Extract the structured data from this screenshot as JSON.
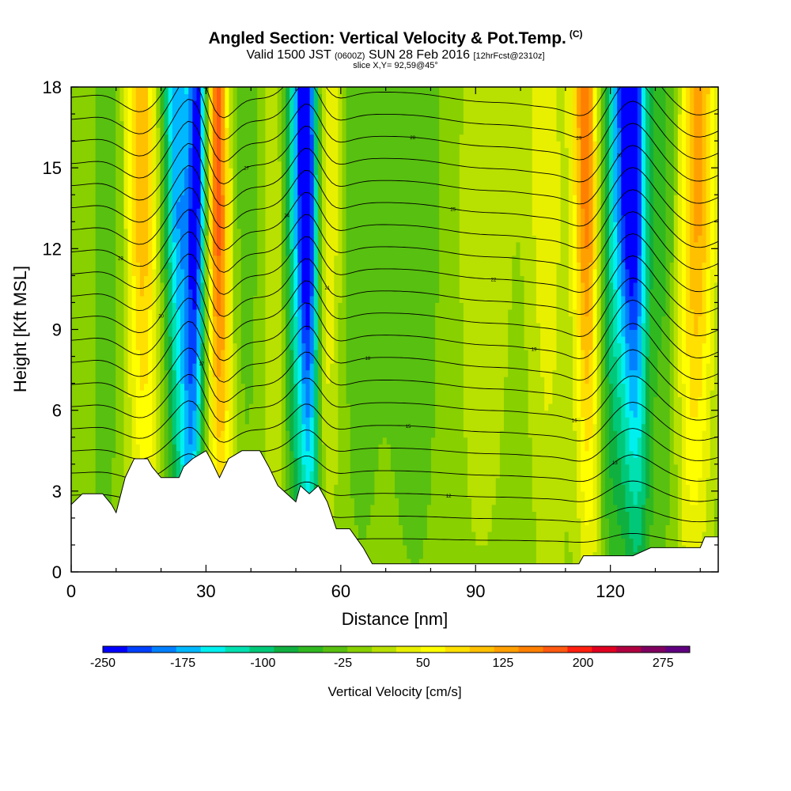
{
  "header": {
    "title": "Angled Section: Vertical Velocity & Pot.Temp.",
    "title_tag": "(C)",
    "valid_prefix": "Valid 1500 JST",
    "valid_zone": "(0600Z)",
    "valid_date": "SUN 28 Feb 2016",
    "valid_fcst": "[12hrFcst@2310z]",
    "slice": "slice X,Y= 92,59@45°"
  },
  "chart_data": {
    "type": "heatmap",
    "xlabel": "Distance [nm]",
    "ylabel": "Height [Kft MSL]",
    "xlim": [
      0,
      144
    ],
    "ylim": [
      0,
      18
    ],
    "x_ticks": [
      0,
      30,
      60,
      90,
      120
    ],
    "y_ticks": [
      0,
      3,
      6,
      9,
      12,
      15,
      18
    ],
    "grid": false,
    "bands": [
      {
        "x": 8,
        "w": 3,
        "v": -30
      },
      {
        "x": 16,
        "w": 3.5,
        "v": 110
      },
      {
        "x": 24,
        "w": 3,
        "v": -150
      },
      {
        "x": 27.5,
        "w": 2.2,
        "v": -200
      },
      {
        "x": 33,
        "w": 2.5,
        "v": 170
      },
      {
        "x": 40,
        "w": 5,
        "v": -20
      },
      {
        "x": 46,
        "w": 3.5,
        "v": 70
      },
      {
        "x": 50,
        "w": 3.5,
        "v": -130
      },
      {
        "x": 53,
        "w": 2.2,
        "v": -190
      },
      {
        "x": 57,
        "w": 3,
        "v": 60
      },
      {
        "x": 64,
        "w": 5,
        "v": -25
      },
      {
        "x": 76,
        "w": 6,
        "v": -30
      },
      {
        "x": 92,
        "w": 6,
        "v": 30
      },
      {
        "x": 106,
        "w": 4,
        "v": 50
      },
      {
        "x": 115,
        "w": 3,
        "v": 150
      },
      {
        "x": 121,
        "w": 4,
        "v": -110
      },
      {
        "x": 125.5,
        "w": 3,
        "v": -190
      },
      {
        "x": 132,
        "w": 3,
        "v": -40
      },
      {
        "x": 139,
        "w": 4,
        "v": 120
      }
    ],
    "base_velocity": -10,
    "terrain": [
      [
        0,
        2.5
      ],
      [
        2.5,
        2.9
      ],
      [
        7,
        2.9
      ],
      [
        9,
        2.5
      ],
      [
        10,
        2.2
      ],
      [
        12,
        3.5
      ],
      [
        14,
        4.2
      ],
      [
        17,
        4.2
      ],
      [
        18,
        3.9
      ],
      [
        20,
        3.5
      ],
      [
        24,
        3.5
      ],
      [
        25,
        3.9
      ],
      [
        27,
        4.2
      ],
      [
        30,
        4.5
      ],
      [
        31,
        4.2
      ],
      [
        33,
        3.5
      ],
      [
        35,
        4.2
      ],
      [
        38,
        4.5
      ],
      [
        42,
        4.5
      ],
      [
        44,
        3.9
      ],
      [
        46,
        3.2
      ],
      [
        48,
        2.9
      ],
      [
        50,
        2.6
      ],
      [
        51,
        3.2
      ],
      [
        53,
        2.9
      ],
      [
        55,
        3.2
      ],
      [
        57,
        2.6
      ],
      [
        59,
        1.6
      ],
      [
        62,
        1.6
      ],
      [
        65,
        0.9
      ],
      [
        67,
        0.3
      ],
      [
        113,
        0.3
      ],
      [
        114,
        0.6
      ],
      [
        125,
        0.6
      ],
      [
        129,
        0.9
      ],
      [
        140,
        0.9
      ],
      [
        141,
        1.3
      ],
      [
        144,
        1.3
      ]
    ],
    "contour_labels": [
      "10",
      "11",
      "12",
      "13",
      "14",
      "15",
      "16",
      "17",
      "18",
      "19",
      "20",
      "21",
      "22",
      "23",
      "24",
      "25",
      "26",
      "27",
      "28",
      "29",
      "30"
    ]
  },
  "colorbar": {
    "title": "Vertical Velocity [cm/s]",
    "colors": [
      "#0000ff",
      "#0040ff",
      "#0080ff",
      "#00b8ff",
      "#00f0f0",
      "#00e0b0",
      "#00c878",
      "#10b040",
      "#30b820",
      "#58c010",
      "#88d000",
      "#b8e000",
      "#e8f000",
      "#ffff00",
      "#ffe000",
      "#ffc000",
      "#ffa000",
      "#ff8000",
      "#ff5a10",
      "#ff2010",
      "#e00020",
      "#b00040",
      "#800060",
      "#600080"
    ],
    "labels": [
      "-250",
      "-175",
      "-100",
      "-25",
      "50",
      "125",
      "200",
      "275"
    ],
    "label_values": [
      -250,
      -175,
      -100,
      -25,
      50,
      125,
      200,
      275
    ],
    "range": [
      -250,
      300
    ]
  }
}
